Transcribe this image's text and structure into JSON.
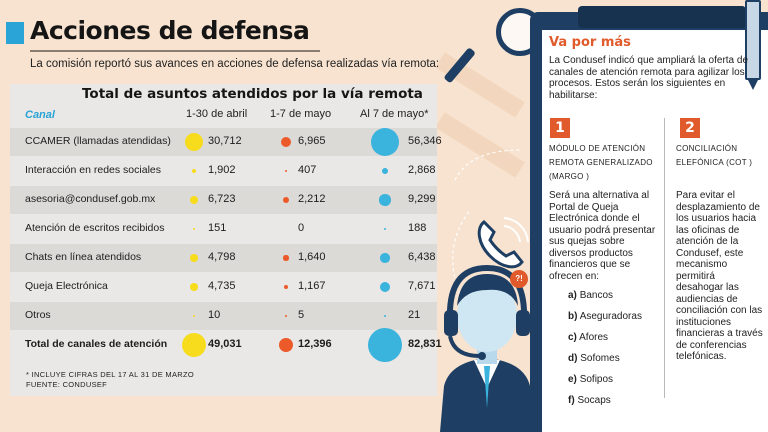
{
  "header": {
    "title": "Acciones de defensa",
    "subtitle": "La comisión reportó sus avances en acciones de defensa realizadas vía remota:"
  },
  "table": {
    "title": "Total de asuntos atendidos por la vía remota",
    "columns": [
      "Canal",
      "1-30 de abril",
      "1-7 de mayo",
      "Al 7 de mayo*"
    ],
    "rows": [
      {
        "canal": "CCAMER (llamadas atendidas)",
        "abril": "30,712",
        "mayo": "6,965",
        "al_mayo": "56,346",
        "abril_n": 30712,
        "mayo_n": 6965,
        "al_mayo_n": 56346
      },
      {
        "canal": "Interacción en redes sociales",
        "abril": "1,902",
        "mayo": "407",
        "al_mayo": "2,868",
        "abril_n": 1902,
        "mayo_n": 407,
        "al_mayo_n": 2868
      },
      {
        "canal": "asesoria@condusef.gob.mx",
        "abril": "6,723",
        "mayo": "2,212",
        "al_mayo": "9,299",
        "abril_n": 6723,
        "mayo_n": 2212,
        "al_mayo_n": 9299
      },
      {
        "canal": "Atención de escritos recibidos",
        "abril": "151",
        "mayo": "0",
        "al_mayo": "188",
        "abril_n": 151,
        "mayo_n": 0,
        "al_mayo_n": 188
      },
      {
        "canal": "Chats en línea atendidos",
        "abril": "4,798",
        "mayo": "1,640",
        "al_mayo": "6,438",
        "abril_n": 4798,
        "mayo_n": 1640,
        "al_mayo_n": 6438
      },
      {
        "canal": "Queja Electrónica",
        "abril": "4,735",
        "mayo": "1,167",
        "al_mayo": "7,671",
        "abril_n": 4735,
        "mayo_n": 1167,
        "al_mayo_n": 7671
      },
      {
        "canal": "Otros",
        "abril": "10",
        "mayo": "5",
        "al_mayo": "21",
        "abril_n": 10,
        "mayo_n": 5,
        "al_mayo_n": 21
      },
      {
        "canal": "Total de canales de atención",
        "abril": "49,031",
        "mayo": "12,396",
        "al_mayo": "82,831",
        "abril_n": 49031,
        "mayo_n": 12396,
        "al_mayo_n": 82831
      }
    ],
    "footnote": "* INCLUYE CIFRAS DEL 17 AL 31 DE MARZO",
    "source": "FUENTE: CONDUSEF"
  },
  "panel": {
    "heading": "Va por más",
    "intro": "La Condusef indicó que ampliará la oferta de canales de atención remota para agilizar los procesos. Estos serán los siguientes en habilitarse:",
    "section1": {
      "number": "1",
      "title": "MÓDULO DE ATENCIÓN REMOTA GENERALIZADO (MARGO )",
      "body": "Será una alternativa al Portal de Queja Electrónica donde el usuario podrá presentar sus quejas sobre diversos productos financieros que se ofrecen en:",
      "options": [
        {
          "letter": "a)",
          "text": "Bancos"
        },
        {
          "letter": "b)",
          "text": "Aseguradoras"
        },
        {
          "letter": "c)",
          "text": "Afores"
        },
        {
          "letter": "d)",
          "text": "Sofomes"
        },
        {
          "letter": "e)",
          "text": "Sofipos"
        },
        {
          "letter": "f)",
          "text": "Socaps"
        }
      ]
    },
    "section2": {
      "number": "2",
      "title": "CONCILIACIÓN ELEFÓNICA (COT )",
      "body": "Para evitar el desplazamiento de los usuarios hacia las oficinas de atención de la Condusef, este mecanismo permitirá desahogar las audiencias de conciliación con las instituciones financieras a través de conferencias telefónicas."
    }
  },
  "illustration": {
    "badge": "?!",
    "icons": [
      "magnifier-icon",
      "phone-icon",
      "call-center-agent-icon"
    ]
  },
  "colors": {
    "accent_blue": "#2aa3d6",
    "accent_orange": "#e05a2b",
    "dot_yellow": "#f7dc1e",
    "dot_orange": "#ed5a2a",
    "dot_blue": "#3ab3dd",
    "navy": "#1e3f63",
    "background": "#f7e3cf"
  }
}
